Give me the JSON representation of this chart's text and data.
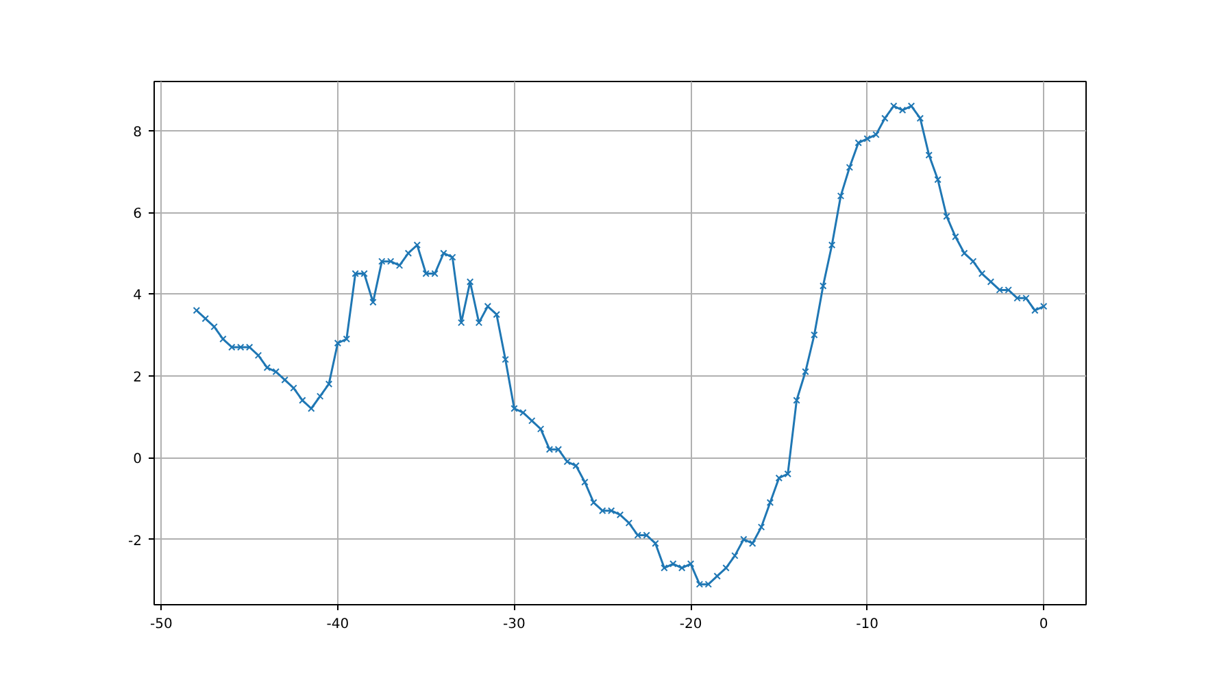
{
  "chart_data": {
    "type": "line",
    "marker": "cross",
    "grid": true,
    "xlim": [
      -50.4,
      2.4
    ],
    "ylim": [
      -3.6,
      9.2
    ],
    "xticks": [
      -50,
      -40,
      -30,
      -20,
      -10,
      0
    ],
    "yticks": [
      -2,
      0,
      2,
      4,
      6,
      8
    ],
    "x": [
      -48,
      -47.5,
      -47,
      -46.5,
      -46,
      -45.5,
      -45,
      -44.5,
      -44,
      -43.5,
      -43,
      -42.5,
      -42,
      -41.5,
      -41,
      -40.5,
      -40,
      -39.5,
      -39,
      -38.5,
      -38,
      -37.5,
      -37,
      -36.5,
      -36,
      -35.5,
      -35,
      -34.5,
      -34,
      -33.5,
      -33,
      -32.5,
      -32,
      -31.5,
      -31,
      -30.5,
      -30,
      -29.5,
      -29,
      -28.5,
      -28,
      -27.5,
      -27,
      -26.5,
      -26,
      -25.5,
      -25,
      -24.5,
      -24,
      -23.5,
      -23,
      -22.5,
      -22,
      -21.5,
      -21,
      -20.5,
      -20,
      -19.5,
      -19,
      -18.5,
      -18,
      -17.5,
      -17,
      -16.5,
      -16,
      -15.5,
      -15,
      -14.5,
      -14,
      -13.5,
      -13,
      -12.5,
      -12,
      -11.5,
      -11,
      -10.5,
      -10,
      -9.5,
      -9,
      -8.5,
      -8,
      -7.5,
      -7,
      -6.5,
      -6,
      -5.5,
      -5,
      -4.5,
      -4,
      -3.5,
      -3,
      -2.5,
      -2,
      -1.5,
      -1,
      -0.5,
      0
    ],
    "series": [
      {
        "color": "#1f77b4",
        "values": [
          3.6,
          3.4,
          3.2,
          2.9,
          2.7,
          2.7,
          2.7,
          2.5,
          2.2,
          2.1,
          1.9,
          1.7,
          1.4,
          1.2,
          1.5,
          1.8,
          2.8,
          2.9,
          4.5,
          4.5,
          3.8,
          4.8,
          4.8,
          4.7,
          5.0,
          5.2,
          4.5,
          4.5,
          5.0,
          4.9,
          3.3,
          4.3,
          3.3,
          3.7,
          3.5,
          2.4,
          1.2,
          1.1,
          0.9,
          0.7,
          0.2,
          0.2,
          -0.1,
          -0.2,
          -0.6,
          -1.1,
          -1.3,
          -1.3,
          -1.4,
          -1.6,
          -1.9,
          -1.9,
          -2.1,
          -2.7,
          -2.6,
          -2.7,
          -2.6,
          -3.1,
          -3.1,
          -2.9,
          -2.7,
          -2.4,
          -2.0,
          -2.1,
          -1.7,
          -1.1,
          -0.5,
          -0.4,
          1.4,
          2.1,
          3.0,
          4.2,
          5.2,
          6.4,
          7.1,
          7.7,
          7.8,
          7.9,
          8.3,
          8.6,
          8.5,
          8.6,
          8.3,
          7.4,
          6.8,
          5.9,
          5.4,
          5.0,
          4.8,
          4.5,
          4.3,
          4.1,
          4.1,
          3.9,
          3.9,
          3.6,
          3.7
        ]
      }
    ]
  }
}
